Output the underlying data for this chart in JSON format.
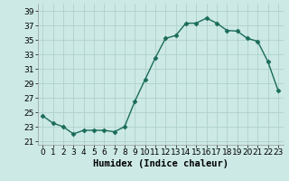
{
  "x": [
    0,
    1,
    2,
    3,
    4,
    5,
    6,
    7,
    8,
    9,
    10,
    11,
    12,
    13,
    14,
    15,
    16,
    17,
    18,
    19,
    20,
    21,
    22,
    23
  ],
  "y": [
    24.5,
    23.5,
    23.0,
    22.0,
    22.5,
    22.5,
    22.5,
    22.3,
    23.0,
    26.5,
    29.5,
    32.5,
    35.2,
    35.6,
    37.3,
    37.3,
    38.0,
    37.3,
    36.3,
    36.2,
    35.2,
    34.8,
    32.0,
    28.0
  ],
  "line_color": "#1a6b5a",
  "marker": "D",
  "marker_size": 2.5,
  "bg_color": "#cce9e5",
  "grid_color": "#b0d0cc",
  "xlabel": "Humidex (Indice chaleur)",
  "ylim": [
    20.5,
    40
  ],
  "xlim": [
    -0.5,
    23.5
  ],
  "yticks": [
    21,
    23,
    25,
    27,
    29,
    31,
    33,
    35,
    37,
    39
  ],
  "xticks": [
    0,
    1,
    2,
    3,
    4,
    5,
    6,
    7,
    8,
    9,
    10,
    11,
    12,
    13,
    14,
    15,
    16,
    17,
    18,
    19,
    20,
    21,
    22,
    23
  ],
  "tick_fontsize": 6.5,
  "label_fontsize": 7.5,
  "linewidth": 1.0
}
